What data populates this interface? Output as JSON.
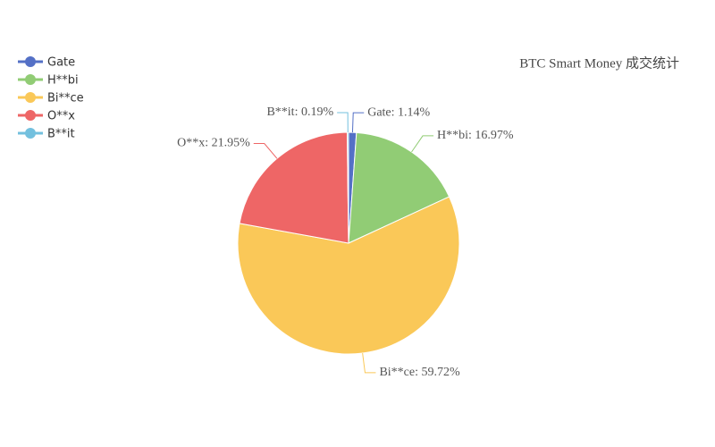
{
  "chart_data": {
    "type": "pie",
    "title": "BTC Smart Money 成交统计",
    "categories": [
      "Gate",
      "H**bi",
      "Bi**ce",
      "O**x",
      "B**it"
    ],
    "values": [
      1.14,
      16.97,
      59.72,
      21.95,
      0.19
    ],
    "value_labels": [
      "Gate: 1.14%",
      "H**bi: 16.97%",
      "Bi**ce: 59.72%",
      "O**x: 21.95%",
      "B**it: 0.19%"
    ],
    "colors": [
      "#5470c6",
      "#91cc75",
      "#fac858",
      "#ee6666",
      "#73c0de"
    ],
    "legend": "top-left"
  }
}
